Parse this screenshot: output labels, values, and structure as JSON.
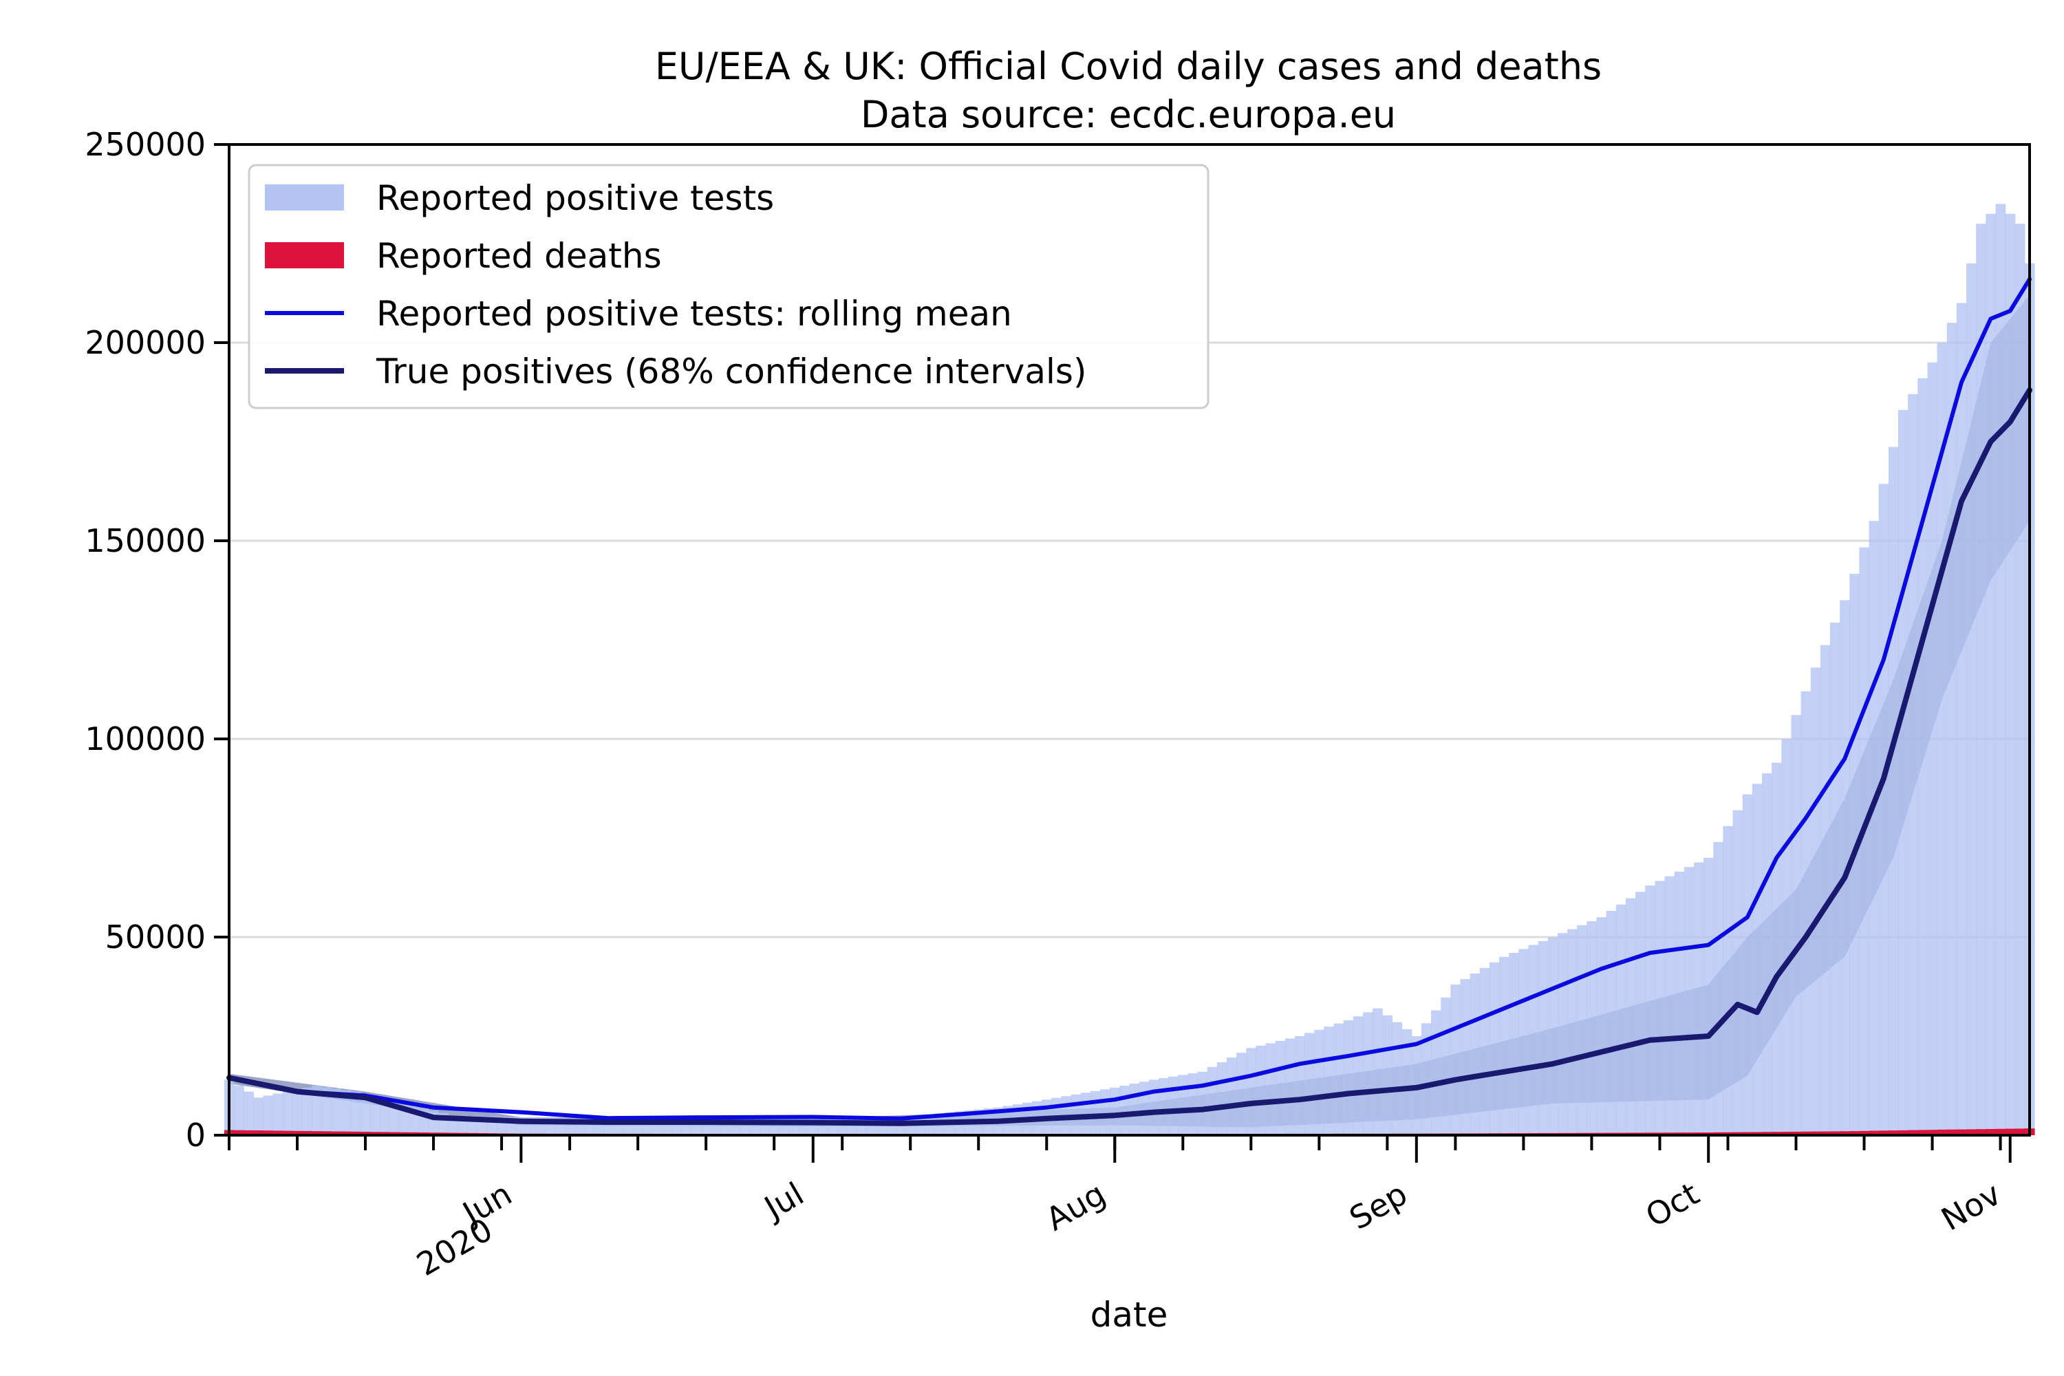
{
  "colors": {
    "cases_bars": "#b3c4f2",
    "deaths_bars": "#dc143c",
    "rolling_mean": "#0a0ae0",
    "true_positives": "#191970",
    "ci_band": "#4a5a9a",
    "grid": "#dddddd"
  },
  "chart_data": {
    "type": "bar",
    "title": "EU/EEA & UK: Official Covid daily cases and deaths",
    "subtitle": "Data source: ecdc.europa.eu",
    "xlabel": "date",
    "ylabel": "",
    "x_range": [
      "2020-05-02",
      "2020-11-03"
    ],
    "ylim": [
      0,
      250000
    ],
    "y_ticks": [
      0,
      50000,
      100000,
      150000,
      200000,
      250000
    ],
    "y_tick_labels": [
      "0",
      "50000",
      "100000",
      "150000",
      "200000",
      "250000"
    ],
    "x_major_ticks": [
      {
        "date": "2020-06-01",
        "label": "Jun",
        "label2": "2020"
      },
      {
        "date": "2020-07-01",
        "label": "Jul",
        "label2": ""
      },
      {
        "date": "2020-08-01",
        "label": "Aug",
        "label2": ""
      },
      {
        "date": "2020-09-01",
        "label": "Sep",
        "label2": ""
      },
      {
        "date": "2020-10-01",
        "label": "Oct",
        "label2": ""
      },
      {
        "date": "2020-11-01",
        "label": "Nov",
        "label2": ""
      }
    ],
    "grid": "horizontal",
    "legend_placement": "top-left",
    "series": [
      {
        "name": "Reported positive tests",
        "kind": "bar",
        "points": [
          [
            "2020-05-02",
            14000
          ],
          [
            "2020-05-05",
            9500
          ],
          [
            "2020-05-08",
            11000
          ],
          [
            "2020-05-11",
            12500
          ],
          [
            "2020-05-15",
            11000
          ],
          [
            "2020-05-20",
            8000
          ],
          [
            "2020-05-25",
            5000
          ],
          [
            "2020-06-01",
            4500
          ],
          [
            "2020-06-10",
            4000
          ],
          [
            "2020-06-20",
            4500
          ],
          [
            "2020-07-01",
            5000
          ],
          [
            "2020-07-10",
            4500
          ],
          [
            "2020-07-20",
            7000
          ],
          [
            "2020-07-25",
            9000
          ],
          [
            "2020-08-01",
            12000
          ],
          [
            "2020-08-05",
            14000
          ],
          [
            "2020-08-10",
            16000
          ],
          [
            "2020-08-15",
            22000
          ],
          [
            "2020-08-20",
            25000
          ],
          [
            "2020-08-25",
            29000
          ],
          [
            "2020-08-28",
            32000
          ],
          [
            "2020-09-01",
            25000
          ],
          [
            "2020-09-05",
            38000
          ],
          [
            "2020-09-10",
            45000
          ],
          [
            "2020-09-15",
            50000
          ],
          [
            "2020-09-20",
            55000
          ],
          [
            "2020-09-25",
            63000
          ],
          [
            "2020-10-01",
            70000
          ],
          [
            "2020-10-05",
            86000
          ],
          [
            "2020-10-08",
            94000
          ],
          [
            "2020-10-12",
            118000
          ],
          [
            "2020-10-15",
            135000
          ],
          [
            "2020-10-18",
            155000
          ],
          [
            "2020-10-21",
            183000
          ],
          [
            "2020-10-24",
            195000
          ],
          [
            "2020-10-27",
            210000
          ],
          [
            "2020-10-29",
            230000
          ],
          [
            "2020-10-31",
            235000
          ],
          [
            "2020-11-02",
            230000
          ],
          [
            "2020-11-03",
            220000
          ]
        ]
      },
      {
        "name": "Reported deaths",
        "kind": "bar",
        "points": [
          [
            "2020-05-02",
            1300
          ],
          [
            "2020-05-15",
            900
          ],
          [
            "2020-06-01",
            400
          ],
          [
            "2020-07-01",
            300
          ],
          [
            "2020-08-01",
            300
          ],
          [
            "2020-09-01",
            400
          ],
          [
            "2020-10-01",
            700
          ],
          [
            "2020-10-15",
            1000
          ],
          [
            "2020-10-25",
            1400
          ],
          [
            "2020-11-03",
            1700
          ]
        ]
      },
      {
        "name": "Reported positive tests: rolling mean",
        "kind": "line",
        "points": [
          [
            "2020-05-02",
            14500
          ],
          [
            "2020-05-09",
            11000
          ],
          [
            "2020-05-16",
            10000
          ],
          [
            "2020-05-23",
            7000
          ],
          [
            "2020-06-01",
            5800
          ],
          [
            "2020-06-10",
            4300
          ],
          [
            "2020-06-20",
            4500
          ],
          [
            "2020-07-01",
            4600
          ],
          [
            "2020-07-10",
            4200
          ],
          [
            "2020-07-20",
            6000
          ],
          [
            "2020-07-25",
            7000
          ],
          [
            "2020-08-01",
            9000
          ],
          [
            "2020-08-05",
            11000
          ],
          [
            "2020-08-10",
            12500
          ],
          [
            "2020-08-15",
            15000
          ],
          [
            "2020-08-20",
            18000
          ],
          [
            "2020-08-25",
            20000
          ],
          [
            "2020-09-01",
            23000
          ],
          [
            "2020-09-05",
            27000
          ],
          [
            "2020-09-10",
            32000
          ],
          [
            "2020-09-15",
            37000
          ],
          [
            "2020-09-20",
            42000
          ],
          [
            "2020-09-25",
            46000
          ],
          [
            "2020-10-01",
            48000
          ],
          [
            "2020-10-05",
            55000
          ],
          [
            "2020-10-08",
            70000
          ],
          [
            "2020-10-11",
            80000
          ],
          [
            "2020-10-15",
            95000
          ],
          [
            "2020-10-19",
            120000
          ],
          [
            "2020-10-23",
            155000
          ],
          [
            "2020-10-27",
            190000
          ],
          [
            "2020-10-30",
            206000
          ],
          [
            "2020-11-01",
            208000
          ],
          [
            "2020-11-03",
            216000
          ]
        ]
      },
      {
        "name": "True positives (68% confidence intervals)",
        "kind": "line",
        "points": [
          [
            "2020-05-02",
            14500
          ],
          [
            "2020-05-09",
            11000
          ],
          [
            "2020-05-16",
            9500
          ],
          [
            "2020-05-23",
            4500
          ],
          [
            "2020-06-01",
            3500
          ],
          [
            "2020-06-10",
            3300
          ],
          [
            "2020-06-20",
            3300
          ],
          [
            "2020-07-01",
            3200
          ],
          [
            "2020-07-10",
            3000
          ],
          [
            "2020-07-20",
            3500
          ],
          [
            "2020-07-25",
            4200
          ],
          [
            "2020-08-01",
            5000
          ],
          [
            "2020-08-05",
            5800
          ],
          [
            "2020-08-10",
            6500
          ],
          [
            "2020-08-15",
            8000
          ],
          [
            "2020-08-20",
            9000
          ],
          [
            "2020-08-25",
            10500
          ],
          [
            "2020-09-01",
            12000
          ],
          [
            "2020-09-05",
            14000
          ],
          [
            "2020-09-10",
            16000
          ],
          [
            "2020-09-15",
            18000
          ],
          [
            "2020-09-20",
            21000
          ],
          [
            "2020-09-25",
            24000
          ],
          [
            "2020-10-01",
            25000
          ],
          [
            "2020-10-04",
            33000
          ],
          [
            "2020-10-06",
            31000
          ],
          [
            "2020-10-08",
            40000
          ],
          [
            "2020-10-11",
            50000
          ],
          [
            "2020-10-15",
            65000
          ],
          [
            "2020-10-19",
            90000
          ],
          [
            "2020-10-23",
            125000
          ],
          [
            "2020-10-27",
            160000
          ],
          [
            "2020-10-30",
            175000
          ],
          [
            "2020-11-01",
            180000
          ],
          [
            "2020-11-03",
            188000
          ]
        ]
      }
    ],
    "true_positives_ci": {
      "lower": [
        [
          "2020-05-02",
          13000
        ],
        [
          "2020-05-16",
          8000
        ],
        [
          "2020-06-01",
          2500
        ],
        [
          "2020-07-01",
          2200
        ],
        [
          "2020-08-01",
          2500
        ],
        [
          "2020-08-15",
          2000
        ],
        [
          "2020-09-01",
          4000
        ],
        [
          "2020-09-15",
          8000
        ],
        [
          "2020-10-01",
          9000
        ],
        [
          "2020-10-05",
          15000
        ],
        [
          "2020-10-10",
          35000
        ],
        [
          "2020-10-15",
          45000
        ],
        [
          "2020-10-20",
          70000
        ],
        [
          "2020-10-25",
          110000
        ],
        [
          "2020-10-30",
          140000
        ],
        [
          "2020-11-03",
          155000
        ]
      ],
      "upper": [
        [
          "2020-05-02",
          15500
        ],
        [
          "2020-05-16",
          11000
        ],
        [
          "2020-06-01",
          4500
        ],
        [
          "2020-07-01",
          4200
        ],
        [
          "2020-08-01",
          7000
        ],
        [
          "2020-08-15",
          12000
        ],
        [
          "2020-09-01",
          18000
        ],
        [
          "2020-09-15",
          27000
        ],
        [
          "2020-10-01",
          38000
        ],
        [
          "2020-10-05",
          50000
        ],
        [
          "2020-10-10",
          62000
        ],
        [
          "2020-10-15",
          85000
        ],
        [
          "2020-10-20",
          115000
        ],
        [
          "2020-10-25",
          150000
        ],
        [
          "2020-10-30",
          200000
        ],
        [
          "2020-11-03",
          212000
        ]
      ]
    }
  }
}
